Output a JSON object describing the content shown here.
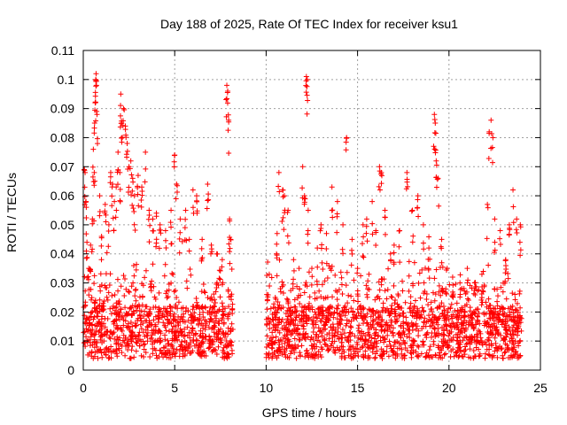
{
  "chart_data": {
    "type": "scatter",
    "title": "Day 188 of 2025, Rate Of TEC Index for receiver ksu1",
    "xlabel": "GPS time / hours",
    "ylabel": "ROTI / TECUs",
    "xlim": [
      0,
      25
    ],
    "ylim": [
      0,
      0.11
    ],
    "x_ticks": [
      "0",
      "5",
      "10",
      "15",
      "20",
      "25"
    ],
    "y_ticks": [
      "0",
      "0.01",
      "0.02",
      "0.03",
      "0.04",
      "0.05",
      "0.06",
      "0.07",
      "0.08",
      "0.09",
      "0.1",
      "0.11"
    ],
    "grid": true,
    "marker": "plus",
    "color": "#ff0000",
    "data_gap_hours": [
      8.2,
      10.0
    ],
    "series": [
      {
        "points": [
          [
            0.05,
            0.069
          ],
          [
            0.1,
            0.068
          ],
          [
            0.15,
            0.058
          ],
          [
            0.2,
            0.044
          ],
          [
            0.3,
            0.035
          ],
          [
            0.4,
            0.043
          ],
          [
            0.5,
            0.052
          ],
          [
            0.55,
            0.076
          ],
          [
            0.6,
            0.068
          ],
          [
            0.62,
            0.085
          ],
          [
            0.65,
            0.092
          ],
          [
            0.68,
            0.1
          ],
          [
            0.7,
            0.102
          ],
          [
            0.72,
            0.098
          ],
          [
            0.75,
            0.088
          ],
          [
            0.9,
            0.06
          ],
          [
            1.0,
            0.046
          ],
          [
            1.2,
            0.057
          ],
          [
            1.4,
            0.05
          ],
          [
            1.5,
            0.068
          ],
          [
            1.6,
            0.064
          ],
          [
            1.7,
            0.058
          ],
          [
            1.8,
            0.063
          ],
          [
            1.9,
            0.075
          ],
          [
            2.0,
            0.068
          ],
          [
            2.05,
            0.095
          ],
          [
            2.1,
            0.085
          ],
          [
            2.2,
            0.09
          ],
          [
            2.3,
            0.084
          ],
          [
            2.4,
            0.078
          ],
          [
            2.5,
            0.07
          ],
          [
            2.6,
            0.072
          ],
          [
            2.7,
            0.066
          ],
          [
            2.8,
            0.06
          ],
          [
            3.0,
            0.067
          ],
          [
            3.2,
            0.063
          ],
          [
            3.4,
            0.075
          ],
          [
            3.6,
            0.055
          ],
          [
            3.8,
            0.052
          ],
          [
            4.0,
            0.054
          ],
          [
            4.2,
            0.05
          ],
          [
            4.5,
            0.048
          ],
          [
            4.8,
            0.055
          ],
          [
            5.0,
            0.074
          ],
          [
            5.1,
            0.064
          ],
          [
            5.3,
            0.052
          ],
          [
            5.6,
            0.055
          ],
          [
            5.8,
            0.045
          ],
          [
            6.0,
            0.062
          ],
          [
            6.2,
            0.06
          ],
          [
            6.5,
            0.045
          ],
          [
            6.8,
            0.064
          ],
          [
            7.0,
            0.043
          ],
          [
            7.3,
            0.04
          ],
          [
            7.6,
            0.038
          ],
          [
            7.85,
            0.098
          ],
          [
            7.9,
            0.096
          ],
          [
            7.95,
            0.086
          ],
          [
            8.0,
            0.052
          ],
          [
            8.05,
            0.045
          ],
          [
            10.5,
            0.025
          ],
          [
            10.6,
            0.047
          ],
          [
            10.7,
            0.068
          ],
          [
            10.9,
            0.062
          ],
          [
            11.0,
            0.06
          ],
          [
            11.2,
            0.055
          ],
          [
            11.5,
            0.038
          ],
          [
            11.8,
            0.035
          ],
          [
            12.0,
            0.07
          ],
          [
            12.1,
            0.06
          ],
          [
            12.2,
            0.101
          ],
          [
            12.25,
            0.1
          ],
          [
            12.3,
            0.055
          ],
          [
            12.5,
            0.035
          ],
          [
            12.8,
            0.042
          ],
          [
            13.0,
            0.05
          ],
          [
            13.3,
            0.047
          ],
          [
            13.6,
            0.063
          ],
          [
            13.9,
            0.058
          ],
          [
            14.2,
            0.05
          ],
          [
            14.4,
            0.08
          ],
          [
            14.7,
            0.045
          ],
          [
            15.0,
            0.035
          ],
          [
            15.3,
            0.05
          ],
          [
            15.5,
            0.052
          ],
          [
            15.8,
            0.058
          ],
          [
            16.0,
            0.048
          ],
          [
            16.2,
            0.07
          ],
          [
            16.3,
            0.068
          ],
          [
            16.5,
            0.055
          ],
          [
            16.8,
            0.04
          ],
          [
            17.0,
            0.043
          ],
          [
            17.3,
            0.048
          ],
          [
            17.7,
            0.068
          ],
          [
            18.0,
            0.055
          ],
          [
            18.3,
            0.06
          ],
          [
            18.6,
            0.05
          ],
          [
            18.9,
            0.042
          ],
          [
            19.2,
            0.088
          ],
          [
            19.25,
            0.085
          ],
          [
            19.3,
            0.072
          ],
          [
            19.4,
            0.066
          ],
          [
            19.6,
            0.045
          ],
          [
            19.9,
            0.035
          ],
          [
            20.2,
            0.032
          ],
          [
            20.6,
            0.03
          ],
          [
            21.0,
            0.035
          ],
          [
            21.4,
            0.03
          ],
          [
            21.8,
            0.033
          ],
          [
            22.1,
            0.057
          ],
          [
            22.2,
            0.082
          ],
          [
            22.3,
            0.086
          ],
          [
            22.4,
            0.08
          ],
          [
            22.5,
            0.052
          ],
          [
            22.8,
            0.048
          ],
          [
            23.1,
            0.038
          ],
          [
            23.3,
            0.05
          ],
          [
            23.5,
            0.062
          ],
          [
            23.7,
            0.052
          ],
          [
            23.9,
            0.05
          ]
        ]
      }
    ]
  }
}
